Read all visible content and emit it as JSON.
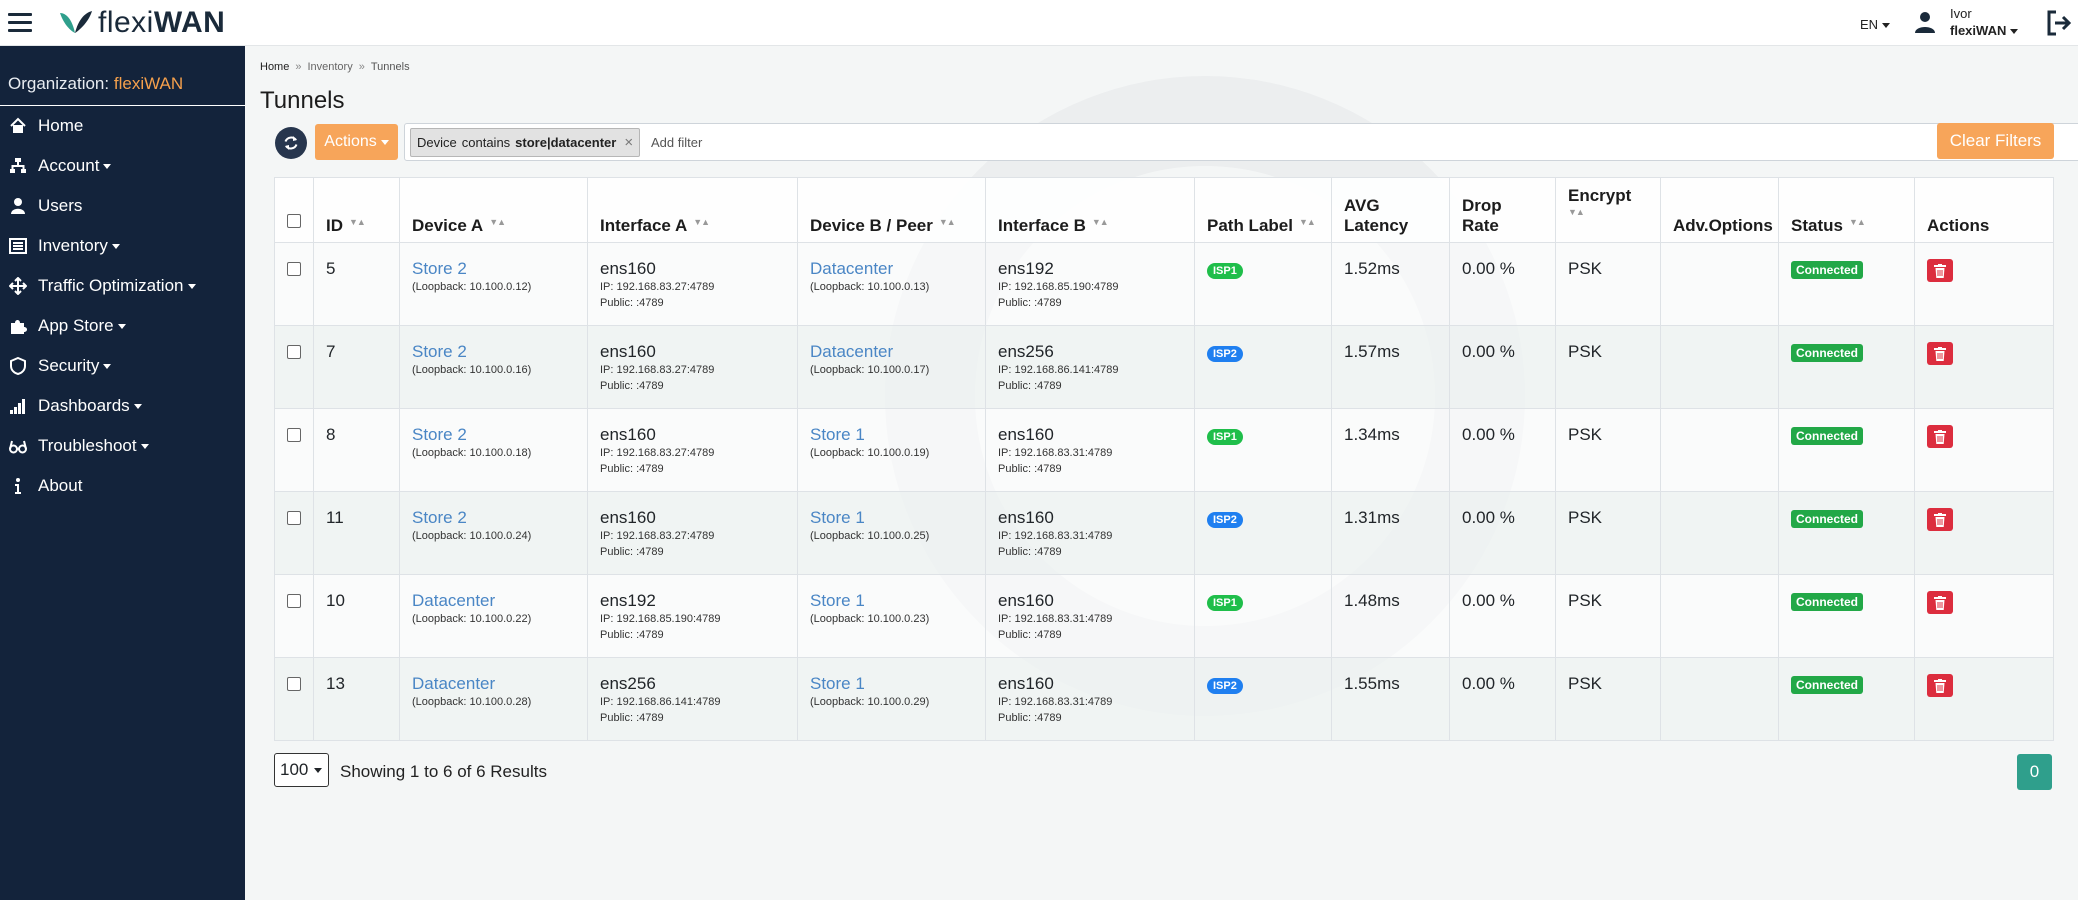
{
  "app": {
    "logo_text_light": "flexi",
    "logo_text_bold": "WAN",
    "language": "EN",
    "user_name": "Ivor",
    "user_org": "flexiWAN"
  },
  "sidebar": {
    "org_label": "Organization:",
    "org_value": "flexiWAN",
    "items": [
      {
        "label": "Home",
        "icon": "home-icon",
        "has_caret": false
      },
      {
        "label": "Account",
        "icon": "sitemap-icon",
        "has_caret": true
      },
      {
        "label": "Users",
        "icon": "user-icon",
        "has_caret": false
      },
      {
        "label": "Inventory",
        "icon": "list-icon",
        "has_caret": true
      },
      {
        "label": "Traffic Optimization",
        "icon": "arrows-icon",
        "has_caret": true
      },
      {
        "label": "App Store",
        "icon": "puzzle-icon",
        "has_caret": true
      },
      {
        "label": "Security",
        "icon": "shield-icon",
        "has_caret": true
      },
      {
        "label": "Dashboards",
        "icon": "signal-icon",
        "has_caret": true
      },
      {
        "label": "Troubleshoot",
        "icon": "glasses-icon",
        "has_caret": true
      },
      {
        "label": "About",
        "icon": "info-icon",
        "has_caret": false
      }
    ]
  },
  "breadcrumb": [
    "Home",
    "Inventory",
    "Tunnels"
  ],
  "page_title": "Tunnels",
  "toolbar": {
    "actions_label": "Actions",
    "filter_chip": {
      "field": "Device",
      "op": "contains",
      "value": "store|datacenter"
    },
    "filter_placeholder": "Add filter",
    "clear_label": "Clear Filters"
  },
  "table": {
    "headers": {
      "id": "ID",
      "device_a": "Device A",
      "interface_a": "Interface A",
      "device_b": "Device B / Peer",
      "interface_b": "Interface B",
      "path_label": "Path Label",
      "avg_latency": "AVG Latency",
      "drop_rate": "Drop Rate",
      "encrypt": "Encrypt",
      "adv_options": "Adv.Options",
      "status": "Status",
      "actions": "Actions"
    },
    "rows": [
      {
        "id": "5",
        "device_a": "Store 2",
        "loop_a": "(Loopback: 10.100.0.12)",
        "if_a": "ens160",
        "if_a_ip": "IP: 192.168.83.27:4789",
        "if_a_pub": "Public: :4789",
        "device_b": "Datacenter",
        "loop_b": "(Loopback: 10.100.0.13)",
        "if_b": "ens192",
        "if_b_ip": "IP: 192.168.85.190:4789",
        "if_b_pub": "Public: :4789",
        "path": "ISP1",
        "path_color": "green",
        "latency": "1.52ms",
        "drop": "0.00 %",
        "encrypt": "PSK",
        "status": "Connected"
      },
      {
        "id": "7",
        "device_a": "Store 2",
        "loop_a": "(Loopback: 10.100.0.16)",
        "if_a": "ens160",
        "if_a_ip": "IP: 192.168.83.27:4789",
        "if_a_pub": "Public: :4789",
        "device_b": "Datacenter",
        "loop_b": "(Loopback: 10.100.0.17)",
        "if_b": "ens256",
        "if_b_ip": "IP: 192.168.86.141:4789",
        "if_b_pub": "Public: :4789",
        "path": "ISP2",
        "path_color": "blue",
        "latency": "1.57ms",
        "drop": "0.00 %",
        "encrypt": "PSK",
        "status": "Connected"
      },
      {
        "id": "8",
        "device_a": "Store 2",
        "loop_a": "(Loopback: 10.100.0.18)",
        "if_a": "ens160",
        "if_a_ip": "IP: 192.168.83.27:4789",
        "if_a_pub": "Public: :4789",
        "device_b": "Store 1",
        "loop_b": "(Loopback: 10.100.0.19)",
        "if_b": "ens160",
        "if_b_ip": "IP: 192.168.83.31:4789",
        "if_b_pub": "Public: :4789",
        "path": "ISP1",
        "path_color": "green",
        "latency": "1.34ms",
        "drop": "0.00 %",
        "encrypt": "PSK",
        "status": "Connected"
      },
      {
        "id": "11",
        "device_a": "Store 2",
        "loop_a": "(Loopback: 10.100.0.24)",
        "if_a": "ens160",
        "if_a_ip": "IP: 192.168.83.27:4789",
        "if_a_pub": "Public: :4789",
        "device_b": "Store 1",
        "loop_b": "(Loopback: 10.100.0.25)",
        "if_b": "ens160",
        "if_b_ip": "IP: 192.168.83.31:4789",
        "if_b_pub": "Public: :4789",
        "path": "ISP2",
        "path_color": "blue",
        "latency": "1.31ms",
        "drop": "0.00 %",
        "encrypt": "PSK",
        "status": "Connected"
      },
      {
        "id": "10",
        "device_a": "Datacenter",
        "loop_a": "(Loopback: 10.100.0.22)",
        "if_a": "ens192",
        "if_a_ip": "IP: 192.168.85.190:4789",
        "if_a_pub": "Public: :4789",
        "device_b": "Store 1",
        "loop_b": "(Loopback: 10.100.0.23)",
        "if_b": "ens160",
        "if_b_ip": "IP: 192.168.83.31:4789",
        "if_b_pub": "Public: :4789",
        "path": "ISP1",
        "path_color": "green",
        "latency": "1.48ms",
        "drop": "0.00 %",
        "encrypt": "PSK",
        "status": "Connected"
      },
      {
        "id": "13",
        "device_a": "Datacenter",
        "loop_a": "(Loopback: 10.100.0.28)",
        "if_a": "ens256",
        "if_a_ip": "IP: 192.168.86.141:4789",
        "if_a_pub": "Public: :4789",
        "device_b": "Store 1",
        "loop_b": "(Loopback: 10.100.0.29)",
        "if_b": "ens160",
        "if_b_ip": "IP: 192.168.83.31:4789",
        "if_b_pub": "Public: :4789",
        "path": "ISP2",
        "path_color": "blue",
        "latency": "1.55ms",
        "drop": "0.00 %",
        "encrypt": "PSK",
        "status": "Connected"
      }
    ]
  },
  "pagination": {
    "page_size": "100",
    "showing": "Showing 1 to 6 of 6 Results",
    "current_page": "0"
  },
  "colors": {
    "sidebar_bg": "#13233b",
    "accent_orange": "#f7a55a",
    "link_blue": "#4a86c5",
    "status_green": "#22a847",
    "delete_red": "#dc2d3e",
    "pager_teal": "#2f9f8c"
  }
}
